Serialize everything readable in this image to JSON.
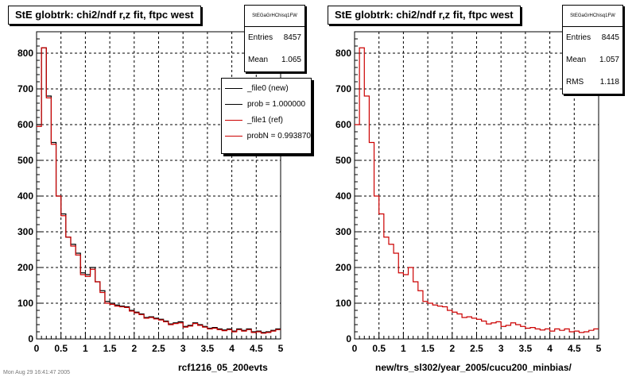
{
  "chart_data": [
    {
      "type": "line",
      "title": "StE globtrk: chi2/ndf r,z fit, ftpc west",
      "xlabel": "rcf1216_05_200evts",
      "ylabel": "",
      "xlim": [
        0,
        5
      ],
      "ylim": [
        0,
        860
      ],
      "x_ticks": [
        "0",
        "0.5",
        "1",
        "1.5",
        "2",
        "2.5",
        "3",
        "3.5",
        "4",
        "4.5",
        "5"
      ],
      "y_ticks": [
        "0",
        "100",
        "200",
        "300",
        "400",
        "500",
        "600",
        "700",
        "800"
      ],
      "grid": true,
      "bin_width": 0.1,
      "stats": {
        "title": "StEGaGrHChisq1FW",
        "rows": [
          {
            "label": "Entries",
            "value": "8457"
          },
          {
            "label": "Mean",
            "value": "1.065"
          }
        ]
      },
      "legend": [
        {
          "label": "_file0 (new)",
          "color": "#000000"
        },
        {
          "label": "prob = 1.000000",
          "color": "#000000"
        },
        {
          "label": "_file1 (ref)",
          "color": "#cc0000"
        },
        {
          "label": "probN = 0.993870",
          "color": "#cc0000"
        }
      ],
      "series": [
        {
          "name": "_file0 (new)",
          "color": "#000000",
          "values": [
            600,
            815,
            680,
            550,
            400,
            350,
            285,
            265,
            240,
            185,
            180,
            200,
            160,
            135,
            105,
            100,
            95,
            92,
            90,
            80,
            75,
            70,
            60,
            62,
            58,
            55,
            50,
            42,
            45,
            48,
            35,
            38,
            45,
            40,
            35,
            30,
            32,
            28,
            25,
            28,
            22,
            28,
            24,
            28,
            20,
            22,
            18,
            20,
            24,
            28
          ]
        },
        {
          "name": "_file1 (ref)",
          "color": "#cc0000",
          "values": [
            595,
            815,
            675,
            545,
            400,
            345,
            285,
            260,
            235,
            180,
            175,
            195,
            160,
            130,
            100,
            97,
            92,
            90,
            88,
            78,
            73,
            68,
            58,
            60,
            56,
            53,
            48,
            40,
            43,
            45,
            33,
            36,
            43,
            38,
            33,
            28,
            30,
            26,
            23,
            26,
            20,
            26,
            22,
            26,
            18,
            20,
            16,
            18,
            22,
            26
          ]
        }
      ]
    },
    {
      "type": "line",
      "title": "StE globtrk: chi2/ndf r,z fit, ftpc west",
      "xlabel": "new/trs_sl302/year_2005/cucu200_minbias/",
      "ylabel": "",
      "xlim": [
        0,
        5
      ],
      "ylim": [
        0,
        860
      ],
      "x_ticks": [
        "0",
        "0.5",
        "1",
        "1.5",
        "2",
        "2.5",
        "3",
        "3.5",
        "4",
        "4.5",
        "5"
      ],
      "y_ticks": [
        "0",
        "100",
        "200",
        "300",
        "400",
        "500",
        "600",
        "700",
        "800"
      ],
      "grid": true,
      "bin_width": 0.1,
      "stats": {
        "title": "StEGaGrHChisq1FW",
        "rows": [
          {
            "label": "Entries",
            "value": "8445"
          },
          {
            "label": "Mean",
            "value": "1.057"
          },
          {
            "label": "RMS",
            "value": "1.118"
          }
        ]
      },
      "series": [
        {
          "name": "",
          "color": "#cc0000",
          "values": [
            600,
            815,
            680,
            550,
            400,
            350,
            285,
            265,
            240,
            185,
            180,
            200,
            160,
            135,
            105,
            100,
            95,
            92,
            90,
            80,
            75,
            70,
            60,
            62,
            58,
            55,
            50,
            42,
            45,
            48,
            35,
            38,
            45,
            40,
            35,
            30,
            32,
            28,
            25,
            28,
            22,
            28,
            24,
            28,
            20,
            22,
            18,
            20,
            24,
            28
          ]
        }
      ]
    }
  ],
  "footer": "Mon Aug 29 16:41:47 2005"
}
